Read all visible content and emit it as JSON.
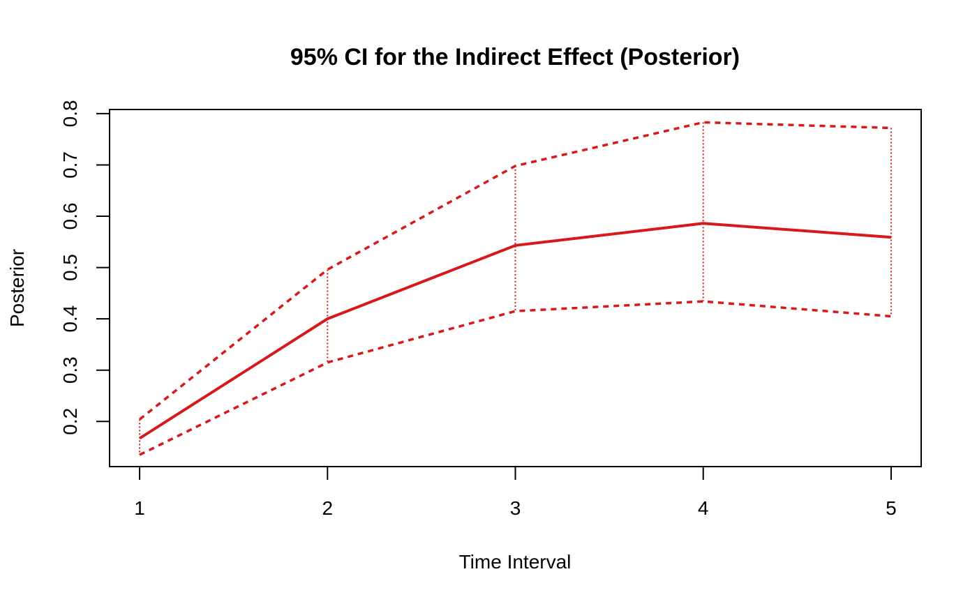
{
  "chart_data": {
    "type": "line",
    "title": "95% CI for the Indirect Effect (Posterior)",
    "xlabel": "Time Interval",
    "ylabel": "Posterior",
    "x": [
      1,
      2,
      3,
      4,
      5
    ],
    "x_ticks": [
      "1",
      "2",
      "3",
      "4",
      "5"
    ],
    "y_ticks": [
      "0.2",
      "0.3",
      "0.4",
      "0.5",
      "0.6",
      "0.7",
      "0.8"
    ],
    "xlim": [
      0.84,
      5.16
    ],
    "ylim": [
      0.112,
      0.808
    ],
    "color": "#d7191c",
    "grid": false,
    "legend": "none",
    "series": [
      {
        "role": "estimate",
        "line_style": "solid",
        "values": [
          0.167,
          0.4,
          0.543,
          0.586,
          0.559
        ]
      },
      {
        "role": "upper",
        "line_style": "dashed",
        "values": [
          0.204,
          0.496,
          0.698,
          0.783,
          0.772
        ]
      },
      {
        "role": "lower",
        "line_style": "dashed",
        "values": [
          0.135,
          0.315,
          0.415,
          0.434,
          0.405
        ]
      }
    ]
  }
}
